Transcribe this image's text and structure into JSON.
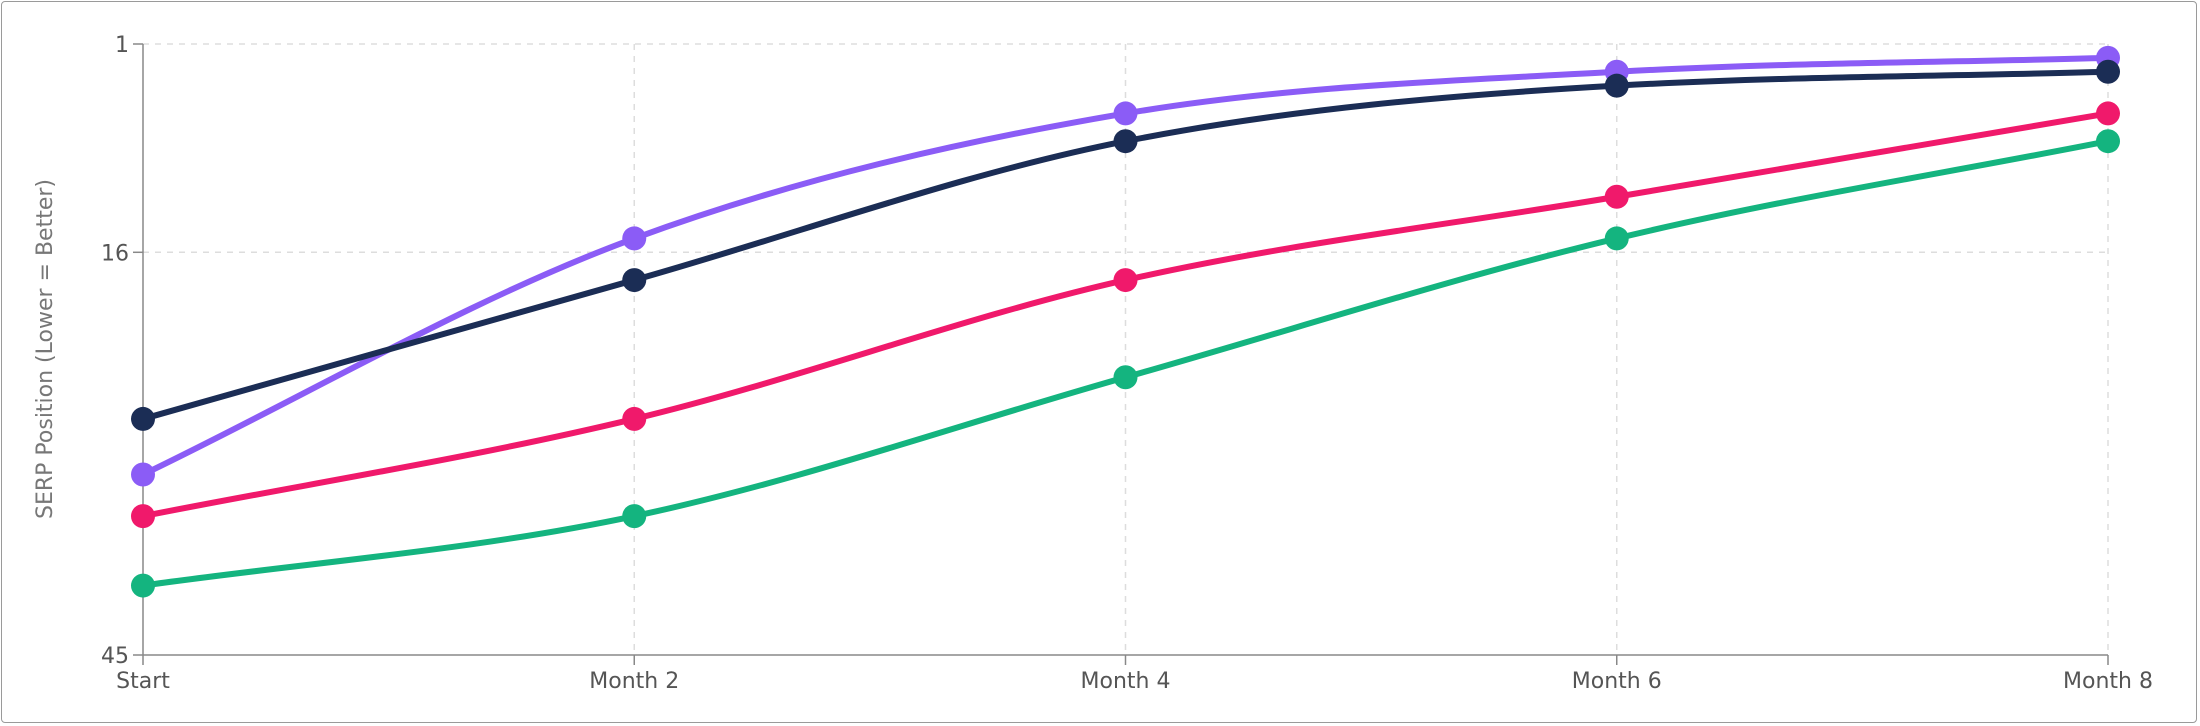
{
  "chart_data": {
    "type": "line",
    "title": "",
    "xlabel": "",
    "ylabel": "SERP Position (Lower = Better)",
    "categories": [
      "Start",
      "Month 2",
      "Month 4",
      "Month 6",
      "Month 8"
    ],
    "y_axis": {
      "inverted": true,
      "ylim": [
        1,
        45
      ],
      "ticks": [
        1,
        16,
        45
      ]
    },
    "grid": true,
    "legend": "none",
    "series": [
      {
        "color": "#8b5cf6",
        "values": [
          32,
          15,
          6,
          3,
          2
        ]
      },
      {
        "color": "#1b2d55",
        "values": [
          28,
          18,
          8,
          4,
          3
        ]
      },
      {
        "color": "#f0196b",
        "values": [
          35,
          28,
          18,
          12,
          6
        ]
      },
      {
        "color": "#14b47f",
        "values": [
          40,
          35,
          25,
          15,
          8
        ]
      }
    ]
  }
}
